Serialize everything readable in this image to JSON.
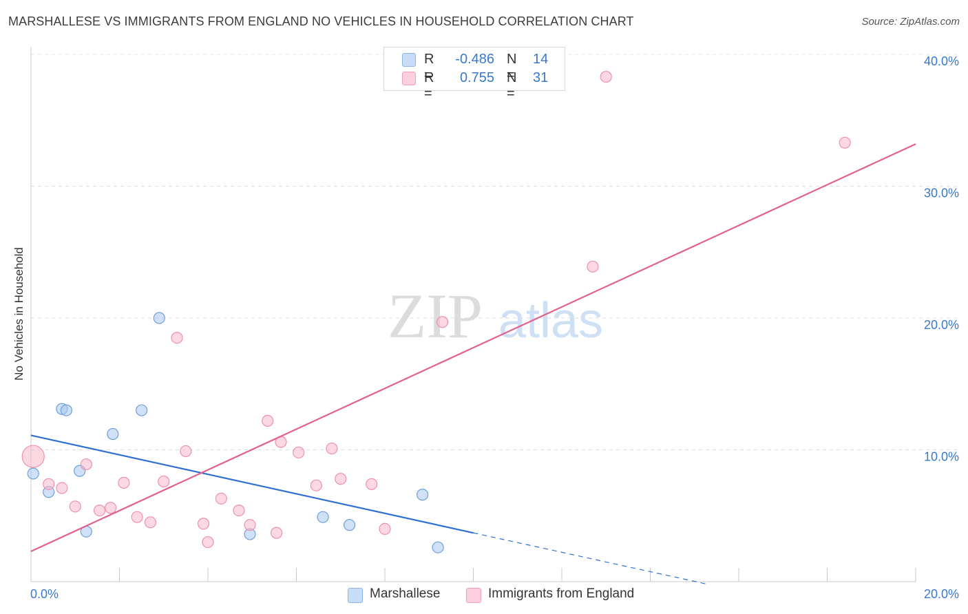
{
  "header": {
    "title": "MARSHALLESE VS IMMIGRANTS FROM ENGLAND NO VEHICLES IN HOUSEHOLD CORRELATION CHART",
    "source": "Source: ZipAtlas.com"
  },
  "watermark": {
    "zip": "ZIP",
    "atlas": "atlas"
  },
  "legend": {
    "rows": [
      {
        "r_label": "R =",
        "r_value": "-0.486",
        "n_label": "N =",
        "n_value": "14",
        "color": "#a9c8f0"
      },
      {
        "r_label": "R =",
        "r_value": "0.755",
        "n_label": "N =",
        "n_value": "31",
        "color": "#f7b8cb"
      }
    ]
  },
  "bottom_legend": {
    "items": [
      {
        "label": "Marshallese",
        "color": "#a9c8f0"
      },
      {
        "label": "Immigrants from England",
        "color": "#f7b8cb"
      }
    ]
  },
  "chart_data": {
    "type": "scatter",
    "title": "MARSHALLESE VS IMMIGRANTS FROM ENGLAND NO VEHICLES IN HOUSEHOLD CORRELATION CHART",
    "xlabel": "",
    "ylabel": "No Vehicles in Household",
    "xlim": [
      0,
      20
    ],
    "ylim": [
      0,
      40
    ],
    "x_tick_labels": [
      "0.0%",
      "20.0%"
    ],
    "y_ticks": [
      10,
      20,
      30,
      40
    ],
    "y_tick_labels": [
      "10.0%",
      "20.0%",
      "30.0%",
      "40.0%"
    ],
    "grid": true,
    "series": [
      {
        "name": "Marshallese",
        "color": "#a9c8f0",
        "stroke": "#6f9fd8",
        "line_color": "#2f6fcf",
        "points": [
          {
            "x": 0.05,
            "y": 8.2
          },
          {
            "x": 0.4,
            "y": 6.8
          },
          {
            "x": 0.7,
            "y": 13.1
          },
          {
            "x": 0.8,
            "y": 13.0
          },
          {
            "x": 1.1,
            "y": 8.4
          },
          {
            "x": 1.25,
            "y": 3.8
          },
          {
            "x": 1.85,
            "y": 11.2
          },
          {
            "x": 2.5,
            "y": 13.0
          },
          {
            "x": 2.9,
            "y": 20.0
          },
          {
            "x": 4.95,
            "y": 3.6
          },
          {
            "x": 6.6,
            "y": 4.9
          },
          {
            "x": 7.2,
            "y": 4.3
          },
          {
            "x": 8.85,
            "y": 6.6
          },
          {
            "x": 9.2,
            "y": 2.6
          }
        ],
        "trend": {
          "x0": 0,
          "y0": 11.1,
          "x1": 10.0,
          "y1": 3.7,
          "dash_x1": 15.3,
          "dash_y1": -0.2
        }
      },
      {
        "name": "Immigrants from England",
        "color": "#f7b8cb",
        "stroke": "#ee90ad",
        "line_color": "#e2608a",
        "points": [
          {
            "x": 0.05,
            "y": 9.5,
            "size": "large"
          },
          {
            "x": 0.4,
            "y": 7.4
          },
          {
            "x": 0.7,
            "y": 7.1
          },
          {
            "x": 1.0,
            "y": 5.7
          },
          {
            "x": 1.25,
            "y": 8.9
          },
          {
            "x": 1.55,
            "y": 5.4
          },
          {
            "x": 1.8,
            "y": 5.6
          },
          {
            "x": 2.1,
            "y": 7.5
          },
          {
            "x": 2.4,
            "y": 4.9
          },
          {
            "x": 2.7,
            "y": 4.5
          },
          {
            "x": 3.0,
            "y": 7.6
          },
          {
            "x": 3.3,
            "y": 18.5
          },
          {
            "x": 3.5,
            "y": 9.9
          },
          {
            "x": 3.9,
            "y": 4.4
          },
          {
            "x": 4.0,
            "y": 3.0
          },
          {
            "x": 4.3,
            "y": 6.3
          },
          {
            "x": 4.7,
            "y": 5.4
          },
          {
            "x": 4.95,
            "y": 4.3
          },
          {
            "x": 5.35,
            "y": 12.2
          },
          {
            "x": 5.55,
            "y": 3.7
          },
          {
            "x": 5.65,
            "y": 10.6
          },
          {
            "x": 6.05,
            "y": 9.8
          },
          {
            "x": 6.45,
            "y": 7.3
          },
          {
            "x": 6.8,
            "y": 10.1
          },
          {
            "x": 7.0,
            "y": 7.8
          },
          {
            "x": 7.7,
            "y": 7.4
          },
          {
            "x": 8.0,
            "y": 4.0
          },
          {
            "x": 9.3,
            "y": 19.7
          },
          {
            "x": 12.7,
            "y": 23.9
          },
          {
            "x": 13.0,
            "y": 38.3
          },
          {
            "x": 18.4,
            "y": 33.3
          }
        ],
        "trend": {
          "x0": 0,
          "y0": 2.3,
          "x1": 20.0,
          "y1": 33.2
        }
      }
    ]
  }
}
